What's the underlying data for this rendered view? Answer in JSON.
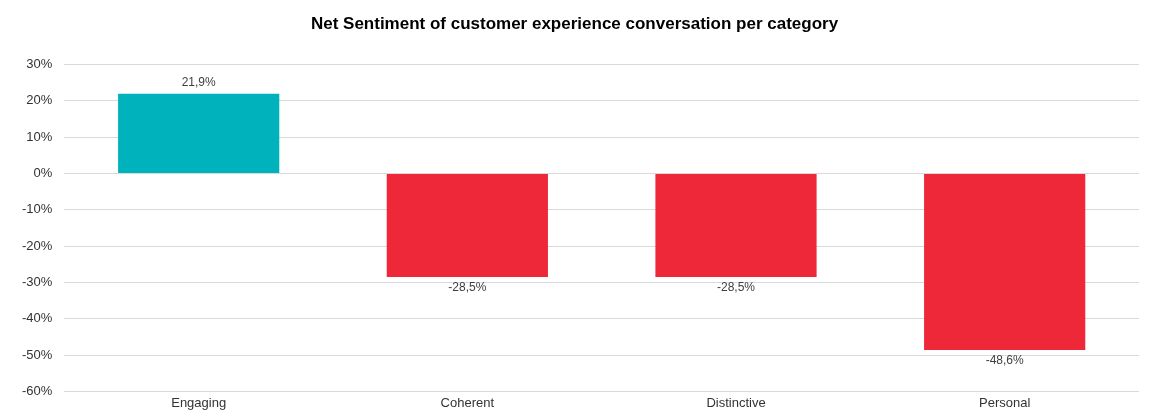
{
  "chart_data": {
    "type": "bar",
    "title": "Net Sentiment of customer experience conversation per category",
    "categories": [
      "Engaging",
      "Coherent",
      "Distinctive",
      "Personal"
    ],
    "values": [
      21.9,
      -28.5,
      -28.5,
      -48.6
    ],
    "colors": [
      "#00b2bb",
      "#ee2839",
      "#ee2839",
      "#ee2839"
    ],
    "value_labels": [
      "21,9%",
      "-28,5%",
      "-28,5%",
      "-48,6%"
    ],
    "ylim": [
      -60,
      30
    ],
    "yticks": [
      {
        "value": 30,
        "label": "30%"
      },
      {
        "value": 20,
        "label": "20%"
      },
      {
        "value": 10,
        "label": "10%"
      },
      {
        "value": 0,
        "label": "0%"
      },
      {
        "value": -10,
        "label": "-10%"
      },
      {
        "value": -20,
        "label": "-20%"
      },
      {
        "value": -30,
        "label": "-30%"
      },
      {
        "value": -40,
        "label": "-40%"
      },
      {
        "value": -50,
        "label": "-50%"
      },
      {
        "value": -60,
        "label": "-60%"
      }
    ],
    "grid": "y"
  }
}
